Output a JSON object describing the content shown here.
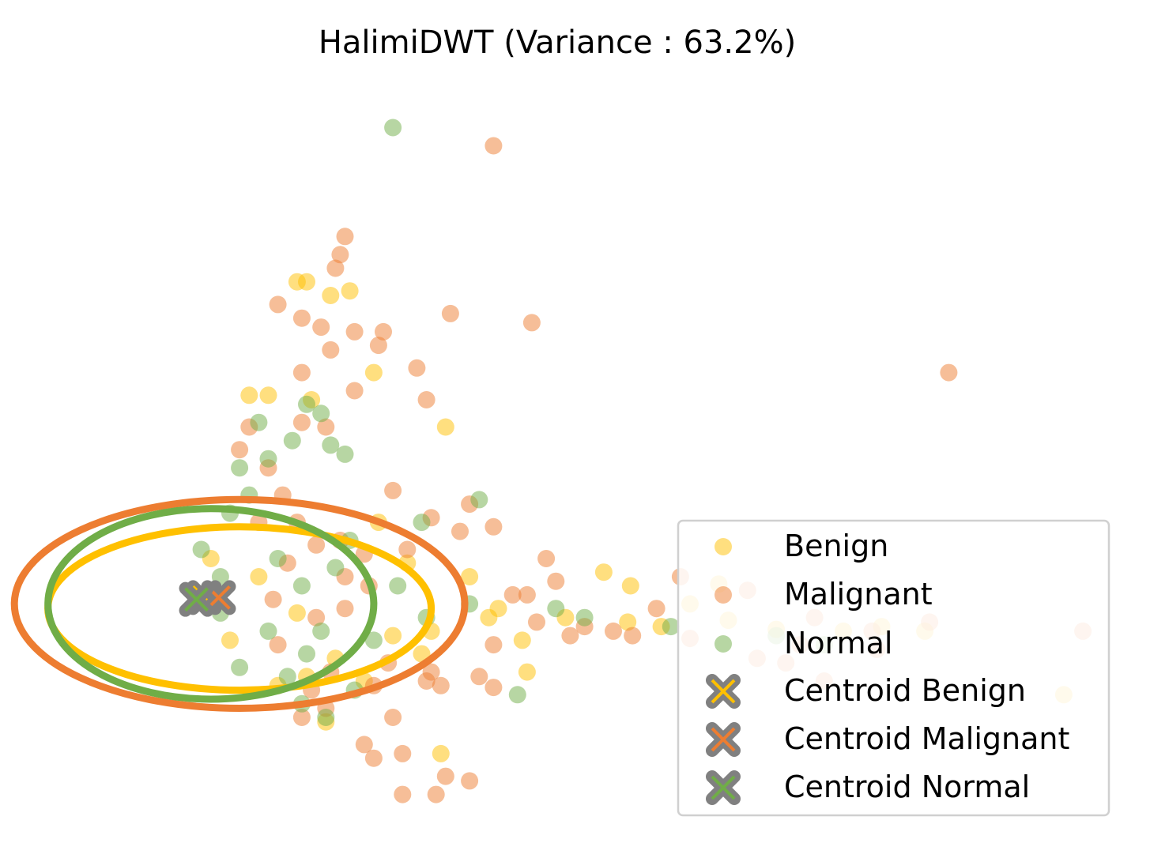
{
  "chart_data": {
    "type": "scatter",
    "title": "HalimiDWT (Variance : 63.2%)",
    "xlabel": "",
    "ylabel": "",
    "axes_visible": false,
    "grid": false,
    "xlim": [
      -2.6,
      9.4
    ],
    "ylim": [
      -2.8,
      5.35
    ],
    "legend_position": "lower-right",
    "series": [
      {
        "name": "Benign",
        "color": "#FFC000",
        "opacity": 0.5,
        "points": [
          [
            0.5,
            3.55
          ],
          [
            0.6,
            3.55
          ],
          [
            0.85,
            3.4
          ],
          [
            1.05,
            3.45
          ],
          [
            1.3,
            2.55
          ],
          [
            0.0,
            2.3
          ],
          [
            0.2,
            2.3
          ],
          [
            0.65,
            2.25
          ],
          [
            2.05,
            1.95
          ],
          [
            3.7,
            0.35
          ],
          [
            3.98,
            0.2
          ],
          [
            4.9,
            0.22
          ],
          [
            4.6,
            0.0
          ],
          [
            5.0,
            -0.18
          ],
          [
            5.5,
            -0.28
          ],
          [
            6.2,
            -0.3
          ],
          [
            6.6,
            -0.25
          ],
          [
            7.05,
            -0.3
          ],
          [
            2.85,
            -0.4
          ],
          [
            2.5,
            -0.15
          ],
          [
            1.9,
            -0.3
          ],
          [
            2.3,
            0.3
          ],
          [
            1.65,
            0.45
          ],
          [
            1.35,
            0.9
          ],
          [
            3.95,
            -0.2
          ],
          [
            4.3,
            -0.25
          ],
          [
            1.8,
            -0.55
          ],
          [
            0.9,
            -0.6
          ],
          [
            1.2,
            -0.85
          ],
          [
            0.6,
            -0.8
          ],
          [
            2.9,
            -0.75
          ],
          [
            8.5,
            -1.0
          ],
          [
            2.0,
            -1.65
          ],
          [
            0.8,
            -1.3
          ],
          [
            0.3,
            -0.9
          ],
          [
            1.5,
            -0.35
          ],
          [
            2.6,
            -0.05
          ],
          [
            3.3,
            -0.15
          ],
          [
            -0.4,
            0.5
          ],
          [
            -0.2,
            -0.4
          ],
          [
            0.1,
            0.3
          ],
          [
            0.5,
            -0.1
          ]
        ]
      },
      {
        "name": "Malignant",
        "color": "#ED7D31",
        "opacity": 0.5,
        "points": [
          [
            2.55,
            5.05
          ],
          [
            1.0,
            4.05
          ],
          [
            0.95,
            3.85
          ],
          [
            0.9,
            3.7
          ],
          [
            2.1,
            3.2
          ],
          [
            2.95,
            3.1
          ],
          [
            0.75,
            3.05
          ],
          [
            0.85,
            2.8
          ],
          [
            1.35,
            2.85
          ],
          [
            0.3,
            3.3
          ],
          [
            0.55,
            3.15
          ],
          [
            1.1,
            3.0
          ],
          [
            1.4,
            3.0
          ],
          [
            7.3,
            2.55
          ],
          [
            0.55,
            2.55
          ],
          [
            1.75,
            2.6
          ],
          [
            1.1,
            2.35
          ],
          [
            1.85,
            2.25
          ],
          [
            0.0,
            1.95
          ],
          [
            0.8,
            1.95
          ],
          [
            0.55,
            2.0
          ],
          [
            1.5,
            1.25
          ],
          [
            1.9,
            0.95
          ],
          [
            2.3,
            1.1
          ],
          [
            2.55,
            0.85
          ],
          [
            2.2,
            0.8
          ],
          [
            1.65,
            0.6
          ],
          [
            1.2,
            0.55
          ],
          [
            3.1,
            0.5
          ],
          [
            3.2,
            0.25
          ],
          [
            4.5,
            0.3
          ],
          [
            5.2,
            0.15
          ],
          [
            5.9,
            -0.15
          ],
          [
            6.5,
            -0.3
          ],
          [
            7.1,
            -0.2
          ],
          [
            8.7,
            -0.3
          ],
          [
            2.75,
            0.1
          ],
          [
            3.0,
            -0.2
          ],
          [
            3.35,
            -0.35
          ],
          [
            4.6,
            -0.38
          ],
          [
            5.3,
            -0.6
          ],
          [
            5.6,
            -0.65
          ],
          [
            5.75,
            -0.45
          ],
          [
            6.0,
            -0.85
          ],
          [
            6.55,
            -0.5
          ],
          [
            2.55,
            -0.45
          ],
          [
            2.4,
            -0.8
          ],
          [
            1.45,
            -0.65
          ],
          [
            1.9,
            -0.75
          ],
          [
            1.3,
            -0.9
          ],
          [
            0.85,
            -0.75
          ],
          [
            0.65,
            -0.95
          ],
          [
            1.85,
            -0.85
          ],
          [
            2.0,
            -0.9
          ],
          [
            2.55,
            -0.92
          ],
          [
            1.5,
            -1.25
          ],
          [
            0.8,
            -1.15
          ],
          [
            0.55,
            -1.25
          ],
          [
            1.2,
            -1.55
          ],
          [
            1.6,
            -1.65
          ],
          [
            1.3,
            -1.7
          ],
          [
            2.3,
            -1.95
          ],
          [
            1.95,
            -2.1
          ],
          [
            1.6,
            -2.1
          ],
          [
            2.05,
            -1.9
          ],
          [
            4.0,
            -0.35
          ],
          [
            4.25,
            -0.05
          ],
          [
            0.2,
            1.5
          ],
          [
            0.35,
            1.2
          ],
          [
            0.5,
            0.9
          ],
          [
            0.7,
            0.65
          ],
          [
            0.4,
            0.45
          ],
          [
            1.0,
            0.3
          ],
          [
            0.25,
            0.05
          ],
          [
            0.7,
            -0.15
          ],
          [
            1.0,
            -0.05
          ],
          [
            0.3,
            -0.45
          ],
          [
            -0.1,
            1.7
          ],
          [
            0.1,
            0.9
          ],
          [
            0.95,
            0.7
          ],
          [
            1.25,
            0.2
          ],
          [
            2.9,
            0.1
          ],
          [
            3.5,
            -0.25
          ],
          [
            3.8,
            -0.3
          ]
        ]
      },
      {
        "name": "Normal",
        "color": "#70AD47",
        "opacity": 0.5,
        "points": [
          [
            1.5,
            5.25
          ],
          [
            0.6,
            2.2
          ],
          [
            0.1,
            2.0
          ],
          [
            0.75,
            2.1
          ],
          [
            0.45,
            1.8
          ],
          [
            0.85,
            1.75
          ],
          [
            0.2,
            1.6
          ],
          [
            1.0,
            1.65
          ],
          [
            -0.1,
            1.5
          ],
          [
            2.4,
            1.15
          ],
          [
            1.8,
            0.9
          ],
          [
            1.05,
            0.7
          ],
          [
            0.55,
            0.2
          ],
          [
            0.75,
            -0.3
          ],
          [
            0.6,
            -0.55
          ],
          [
            1.55,
            0.2
          ],
          [
            2.3,
            0.0
          ],
          [
            3.2,
            -0.05
          ],
          [
            3.5,
            -0.15
          ],
          [
            4.4,
            -0.25
          ],
          [
            5.5,
            -0.35
          ],
          [
            6.0,
            -0.45
          ],
          [
            2.8,
            -1.0
          ],
          [
            0.55,
            -1.1
          ],
          [
            0.8,
            -1.25
          ],
          [
            1.1,
            -0.95
          ],
          [
            1.85,
            -0.15
          ],
          [
            0.3,
            0.5
          ],
          [
            -0.3,
            0.3
          ],
          [
            0.2,
            -0.3
          ],
          [
            0.4,
            -0.8
          ],
          [
            -0.1,
            -0.7
          ],
          [
            -0.3,
            -0.1
          ],
          [
            0.9,
            0.4
          ],
          [
            1.3,
            -0.4
          ],
          [
            0.0,
            1.2
          ],
          [
            -0.5,
            0.6
          ],
          [
            -0.2,
            1.0
          ]
        ]
      }
    ],
    "ellipses": [
      {
        "series": "Malignant",
        "cx": -0.1,
        "cy": 0.0,
        "rx": 2.35,
        "ry": 1.15,
        "color": "#ED7D31"
      },
      {
        "series": "Benign",
        "cx": -0.1,
        "cy": -0.05,
        "rx": 2.0,
        "ry": 0.9,
        "color": "#FFC000"
      },
      {
        "series": "Normal",
        "cx": -0.4,
        "cy": 0.0,
        "rx": 1.7,
        "ry": 1.05,
        "color": "#70AD47"
      }
    ],
    "centroids": [
      {
        "name": "Centroid Benign",
        "x": -0.47,
        "y": 0.07,
        "color": "#FFC000"
      },
      {
        "name": "Centroid Malignant",
        "x": -0.32,
        "y": 0.07,
        "color": "#ED7D31"
      },
      {
        "name": "Centroid Normal",
        "x": -0.55,
        "y": 0.05,
        "color": "#70AD47"
      }
    ],
    "legend": {
      "entries": [
        "Benign",
        "Malignant",
        "Normal",
        "Centroid Benign",
        "Centroid Malignant",
        "Centroid Normal"
      ]
    }
  }
}
